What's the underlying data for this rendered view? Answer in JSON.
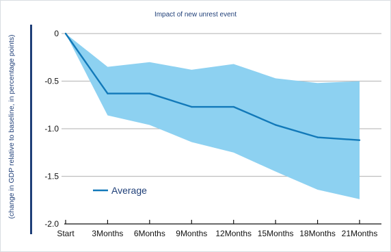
{
  "chart_data": {
    "type": "line",
    "title": "Impact of new unrest event",
    "ylabel": "(change in GDP relative to baseline, in percentage points)",
    "xlabel": "",
    "categories": [
      "Start",
      "3Months",
      "6Months",
      "9Months",
      "12Months",
      "15Months",
      "18Months",
      "21Months"
    ],
    "yticks": [
      "0",
      "-0.5",
      "-1.0",
      "-1.5",
      "-2.0"
    ],
    "ytick_values": [
      0,
      -0.5,
      -1.0,
      -1.5,
      -2.0
    ],
    "ylim": [
      -2.0,
      0
    ],
    "grid": true,
    "legend_position": "lower-left",
    "series": [
      {
        "name": "Average",
        "values": [
          0,
          -0.63,
          -0.63,
          -0.77,
          -0.77,
          -0.96,
          -1.09,
          -1.12
        ]
      }
    ],
    "band": {
      "upper": [
        0,
        -0.35,
        -0.3,
        -0.38,
        -0.32,
        -0.47,
        -0.52,
        -0.5
      ],
      "lower": [
        0,
        -0.86,
        -0.96,
        -1.14,
        -1.25,
        -1.45,
        -1.64,
        -1.74
      ]
    },
    "colors": {
      "line": "#1279b9",
      "band": "#8dd1f1",
      "grid": "#bfbfbf",
      "title": "#1f3f78",
      "axis": "#1f3f78"
    }
  }
}
